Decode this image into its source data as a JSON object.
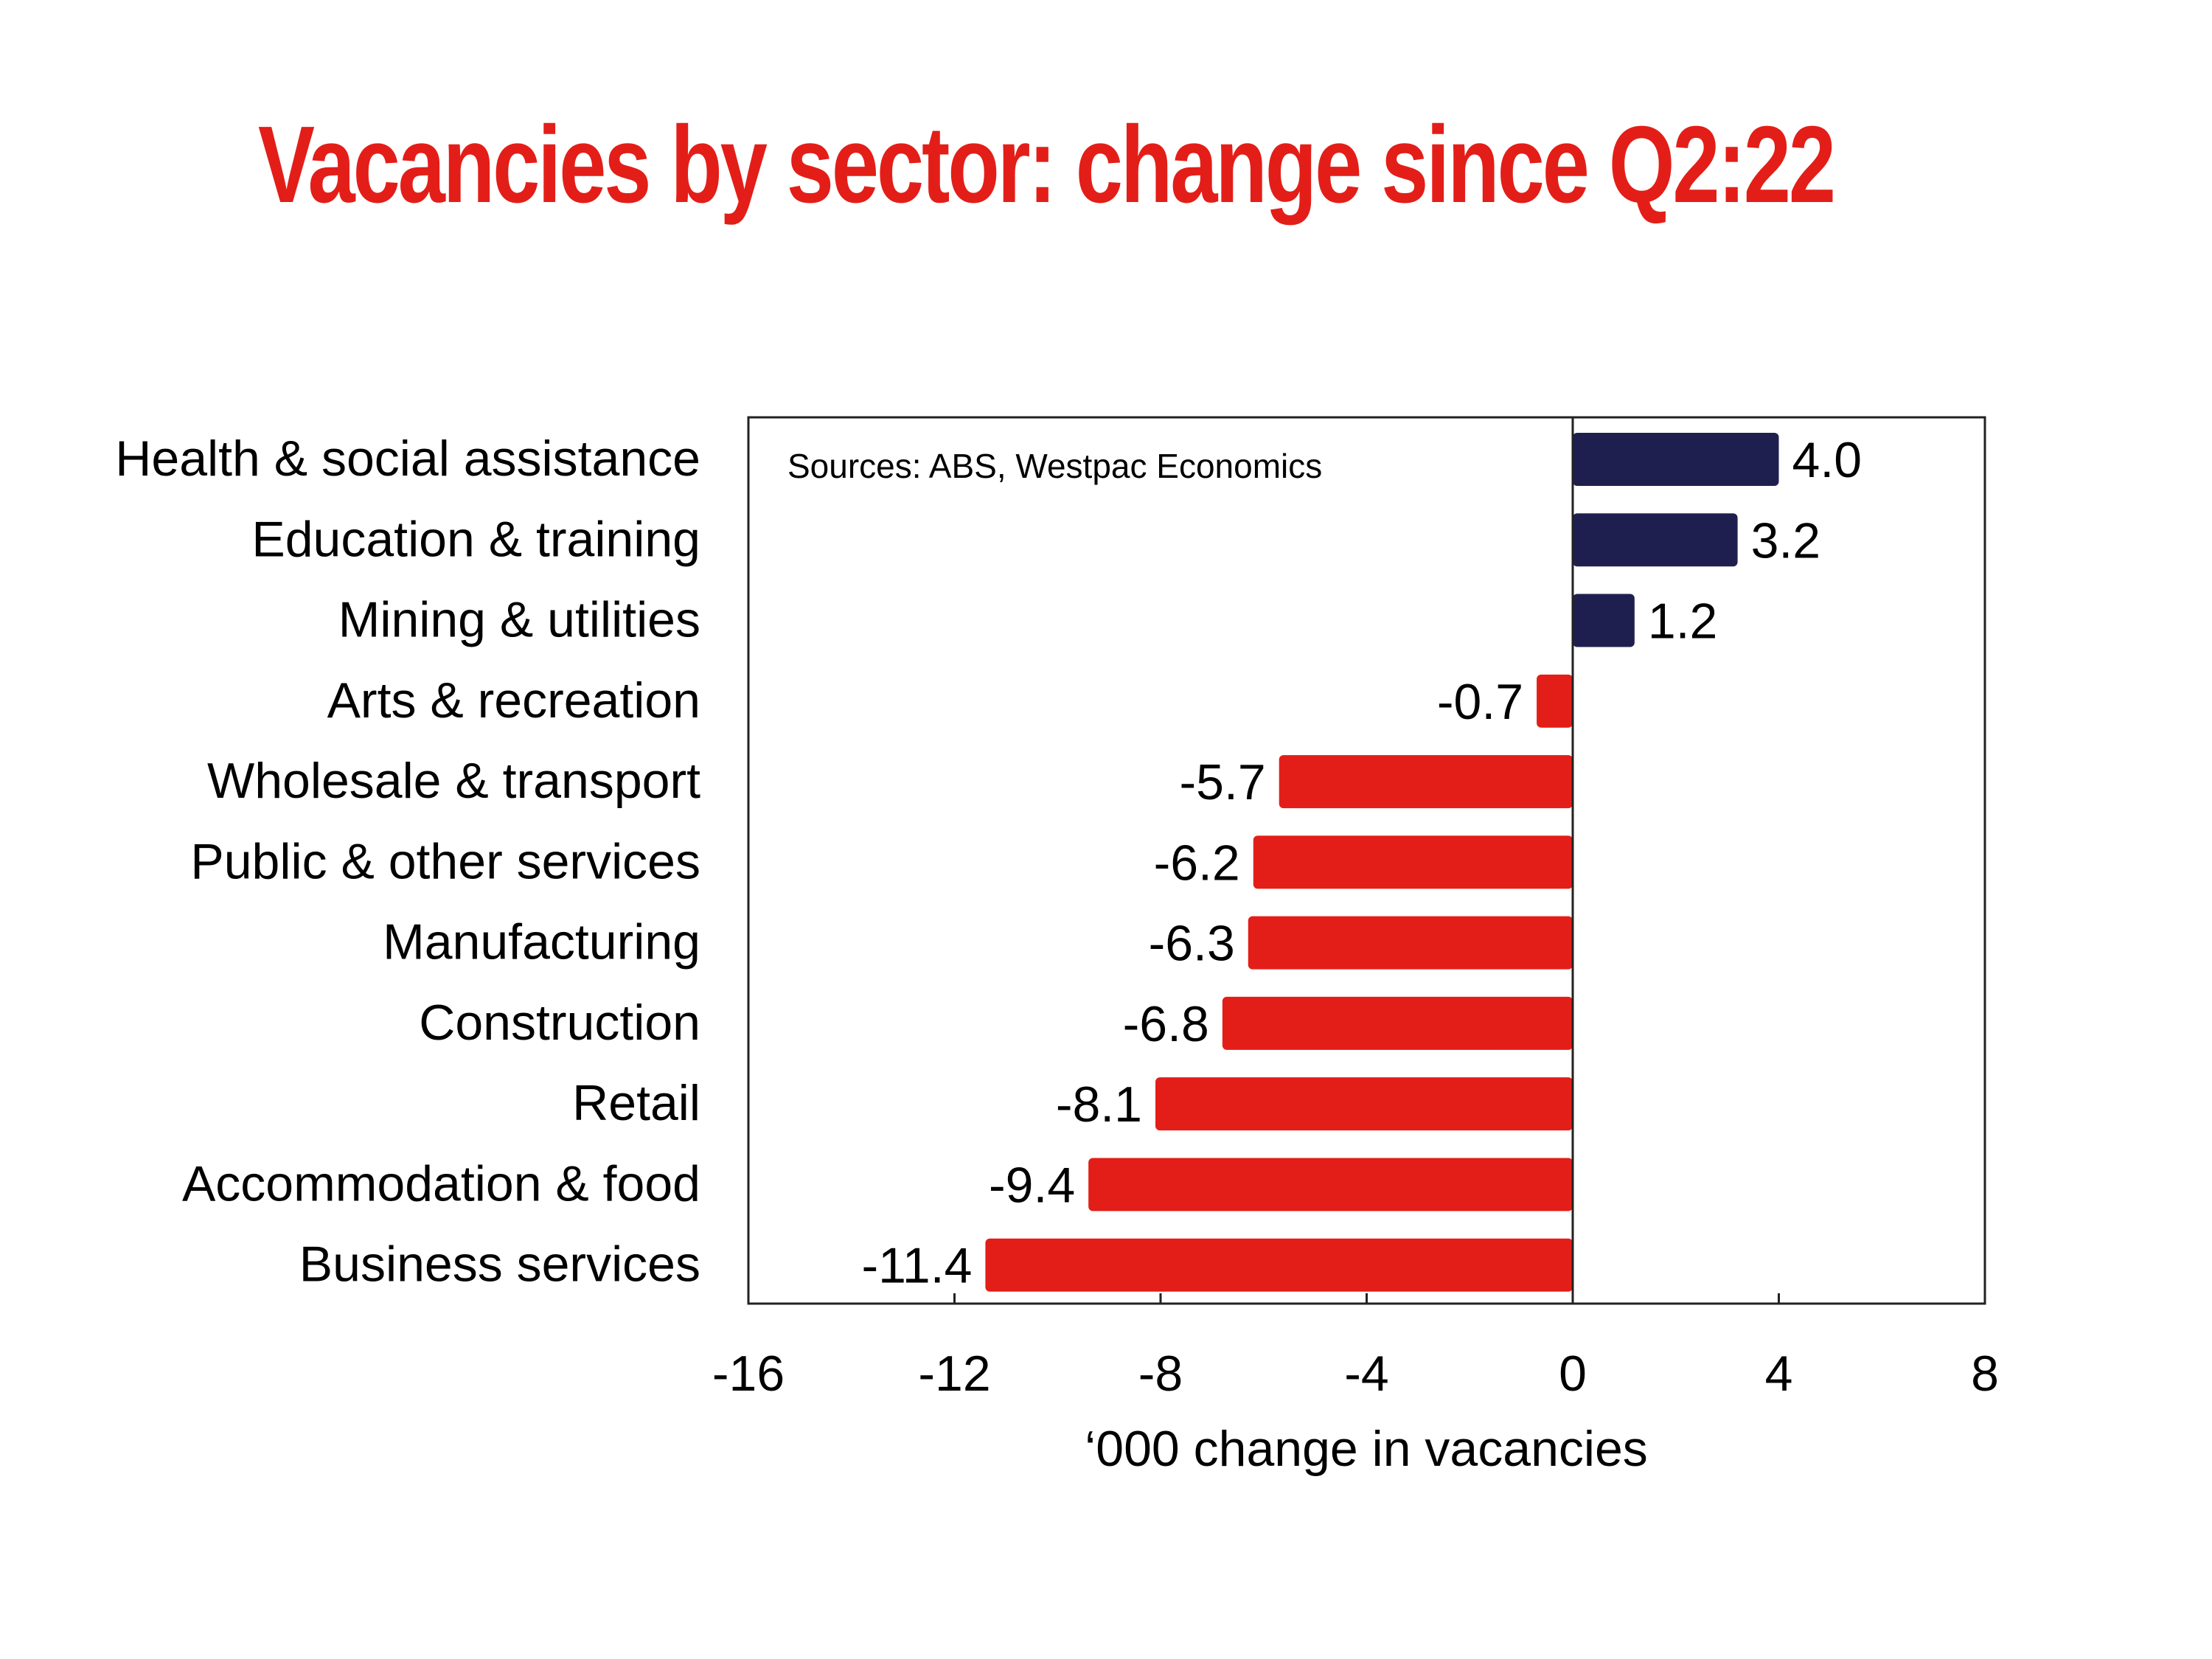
{
  "chart_data": {
    "type": "bar",
    "orientation": "horizontal",
    "title": "Vacancies by sector: change since Q2:22",
    "xlabel": "‘000 change in vacancies",
    "ylabel": "",
    "source": "Sources: ABS, Westpac Economics",
    "xlim": [
      -16,
      8
    ],
    "xticks": [
      "-16",
      "-12",
      "-8",
      "-4",
      "0",
      "4",
      "8"
    ],
    "xtick_values": [
      -16,
      -12,
      -8,
      -4,
      0,
      4,
      8
    ],
    "categories": [
      "Health & social assistance",
      "Education & training",
      "Mining & utilities",
      "Arts & recreation",
      "Wholesale & transport",
      "Public & other services",
      "Manufacturing",
      "Construction",
      "Retail",
      "Accommodation & food",
      "Business services"
    ],
    "values": [
      4.0,
      3.2,
      1.2,
      -0.7,
      -5.7,
      -6.2,
      -6.3,
      -6.8,
      -8.1,
      -9.4,
      -11.4
    ],
    "value_labels": [
      "4.0",
      "3.2",
      "1.2",
      "-0.7",
      "-5.7",
      "-6.2",
      "-6.3",
      "-6.8",
      "-8.1",
      "-9.4",
      "-11.4"
    ],
    "colors": {
      "positive": "#1f1f4f",
      "negative": "#e31e18",
      "title": "#e31e18"
    },
    "grid": false
  }
}
